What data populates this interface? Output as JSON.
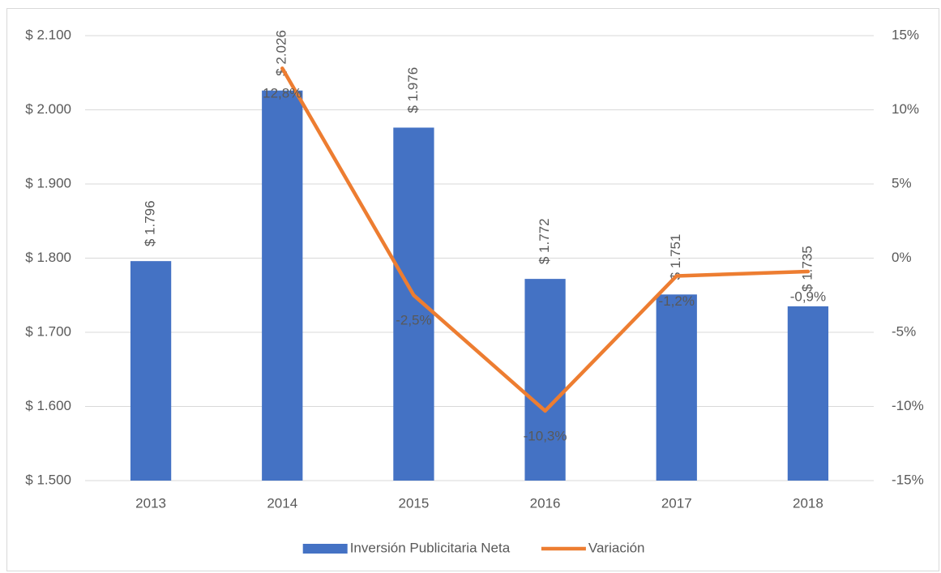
{
  "chart_data": {
    "type": "combo",
    "categories": [
      "2013",
      "2014",
      "2015",
      "2016",
      "2017",
      "2018"
    ],
    "series": [
      {
        "name": "Inversión Publicitaria Neta",
        "type": "bar",
        "color": "#4472c4",
        "values": [
          1796,
          2026,
          1976,
          1772,
          1751,
          1735
        ],
        "value_labels": [
          "$ 1.796",
          "$ 2.026",
          "$ 1.976",
          "$ 1.772",
          "$ 1.751",
          "$ 1.735"
        ]
      },
      {
        "name": "Variación",
        "type": "line",
        "axis": "y2",
        "color": "#ed7d31",
        "values": [
          null,
          12.8,
          -2.5,
          -10.3,
          -1.2,
          -0.9
        ],
        "value_labels": [
          null,
          "12,8%",
          "-2,5%",
          "-10,3%",
          "-1,2%",
          "-0,9%"
        ]
      }
    ],
    "ylim": [
      1500,
      2100
    ],
    "yticks": [
      {
        "value": 1500,
        "label": "$ 1.500"
      },
      {
        "value": 1600,
        "label": "$ 1.600"
      },
      {
        "value": 1700,
        "label": "$ 1.700"
      },
      {
        "value": 1800,
        "label": "$ 1.800"
      },
      {
        "value": 1900,
        "label": "$ 1.900"
      },
      {
        "value": 2000,
        "label": "$ 2.000"
      },
      {
        "value": 2100,
        "label": "$ 2.100"
      }
    ],
    "y2lim": [
      -15,
      15
    ],
    "y2ticks": [
      {
        "value": -15,
        "label": "-15%"
      },
      {
        "value": -10,
        "label": "-10%"
      },
      {
        "value": -5,
        "label": "-5%"
      },
      {
        "value": 0,
        "label": "0%"
      },
      {
        "value": 5,
        "label": "5%"
      },
      {
        "value": 10,
        "label": "10%"
      },
      {
        "value": 15,
        "label": "15%"
      }
    ],
    "grid": true,
    "legend": "bottom"
  }
}
